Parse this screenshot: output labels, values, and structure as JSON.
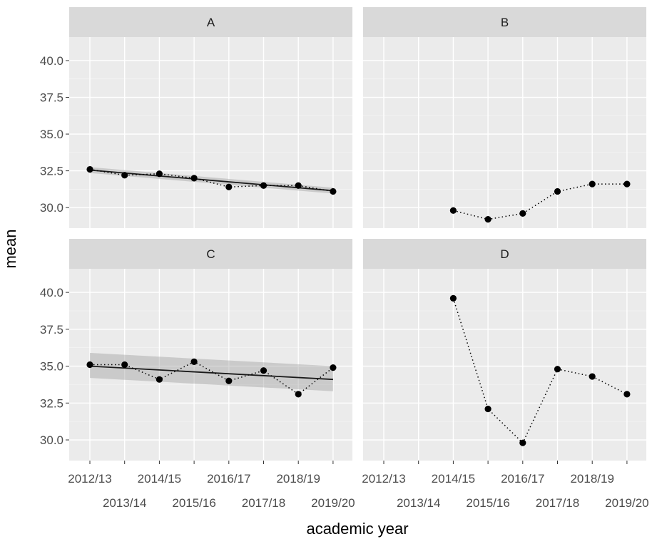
{
  "chart_data": {
    "type": "line",
    "facets": [
      "A",
      "B",
      "C",
      "D"
    ],
    "categories": [
      "2012/13",
      "2013/14",
      "2014/15",
      "2015/16",
      "2016/17",
      "2017/18",
      "2018/19",
      "2019/20"
    ],
    "xlabel": "academic year",
    "ylabel": "mean",
    "ylim": [
      28.6,
      41.6
    ],
    "yticks": [
      "30.0",
      "32.5",
      "35.0",
      "37.5",
      "40.0"
    ],
    "series": [
      {
        "name": "A",
        "values": [
          32.6,
          32.2,
          32.3,
          32.0,
          31.4,
          31.5,
          31.5,
          31.1
        ],
        "trend": {
          "start": 32.55,
          "end": 31.15,
          "band_start": [
            32.35,
            32.75
          ],
          "band_end": [
            30.95,
            31.35
          ]
        }
      },
      {
        "name": "B",
        "values": [
          null,
          null,
          29.8,
          29.2,
          29.6,
          31.1,
          31.6,
          31.6
        ]
      },
      {
        "name": "C",
        "values": [
          35.1,
          35.1,
          34.1,
          35.3,
          34.0,
          34.7,
          33.1,
          34.9
        ],
        "trend": {
          "start": 35.0,
          "end": 34.1,
          "band_start": [
            34.2,
            35.9
          ],
          "band_end": [
            33.3,
            35.0
          ]
        }
      },
      {
        "name": "D",
        "values": [
          null,
          null,
          39.6,
          32.1,
          29.8,
          34.8,
          34.3,
          33.1
        ]
      }
    ]
  }
}
